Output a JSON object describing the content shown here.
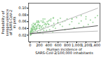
{
  "chart_data": {
    "type": "scatter",
    "xlabel": "Human incidence of\nSARS-CoV-2/100,000 inhabitants",
    "ylabel": "Probability of\nseroprevalence\nof SARS-CoV-2\nin pets",
    "xlim": [
      -30,
      1500
    ],
    "ylim": [
      0.0,
      0.115
    ],
    "xticks": [
      0,
      200,
      400,
      600,
      800,
      {
        "value": 1000,
        "label": "1,000"
      },
      {
        "value": 1200,
        "label": "1,200"
      },
      {
        "value": 1400,
        "label": "1,400"
      }
    ],
    "yticks": [
      0.02,
      0.04,
      0.06,
      0.08,
      {
        "value": 0.1,
        "label": "0.10"
      }
    ],
    "series": [
      {
        "type": "scatter",
        "color": "#88cc88",
        "x": [
          5,
          8,
          12,
          18,
          22,
          28,
          33,
          38,
          42,
          48,
          52,
          58,
          65,
          72,
          82,
          92,
          102,
          112,
          122,
          132,
          142,
          152,
          162,
          172,
          182,
          195,
          205,
          215,
          228,
          242,
          255,
          268,
          278,
          292,
          305,
          318,
          335,
          352,
          368,
          385,
          402,
          422,
          445,
          465,
          488,
          510,
          545,
          595,
          645,
          695,
          748,
          795,
          848,
          895,
          945,
          998,
          1048,
          1098,
          1148,
          1198,
          1248,
          1295,
          1348,
          1398,
          1448,
          10,
          20,
          30,
          45,
          65,
          95,
          125,
          155,
          195,
          245,
          295,
          345,
          395,
          495,
          25,
          55,
          88,
          115,
          145,
          175,
          208,
          238,
          268,
          298,
          398,
          498,
          598,
          18,
          38,
          78,
          108,
          138,
          168,
          198,
          278,
          348,
          448,
          598,
          748,
          898,
          1098,
          5,
          15,
          25,
          42,
          60,
          80,
          110,
          145,
          180,
          220,
          270,
          330,
          420,
          520,
          650,
          8,
          22,
          40,
          70,
          100,
          150,
          200,
          280,
          380,
          500,
          700,
          900,
          1200
        ],
        "values": [
          0.025,
          0.03,
          0.022,
          0.028,
          0.035,
          0.032,
          0.038,
          0.025,
          0.04,
          0.045,
          0.028,
          0.033,
          0.038,
          0.048,
          0.03,
          0.042,
          0.036,
          0.052,
          0.046,
          0.038,
          0.058,
          0.04,
          0.03,
          0.052,
          0.062,
          0.04,
          0.048,
          0.028,
          0.035,
          0.044,
          0.038,
          0.058,
          0.025,
          0.042,
          0.052,
          0.068,
          0.046,
          0.034,
          0.06,
          0.044,
          0.052,
          0.036,
          0.062,
          0.048,
          0.028,
          0.055,
          0.04,
          0.065,
          0.052,
          0.046,
          0.036,
          0.068,
          0.052,
          0.06,
          0.042,
          0.072,
          0.055,
          0.062,
          0.046,
          0.068,
          0.052,
          0.065,
          0.058,
          0.072,
          0.078,
          0.02,
          0.024,
          0.03,
          0.036,
          0.044,
          0.052,
          0.038,
          0.048,
          0.058,
          0.044,
          0.034,
          0.052,
          0.062,
          0.044,
          0.022,
          0.028,
          0.038,
          0.034,
          0.046,
          0.052,
          0.04,
          0.062,
          0.048,
          0.058,
          0.052,
          0.07,
          0.058,
          0.026,
          0.034,
          0.044,
          0.052,
          0.038,
          0.058,
          0.046,
          0.062,
          0.052,
          0.068,
          0.056,
          0.062,
          0.068,
          0.078,
          0.028,
          0.032,
          0.04,
          0.05,
          0.035,
          0.045,
          0.055,
          0.042,
          0.06,
          0.048,
          0.038,
          0.055,
          0.065,
          0.048,
          0.07,
          0.022,
          0.03,
          0.038,
          0.055,
          0.042,
          0.062,
          0.048,
          0.068,
          0.055,
          0.072,
          0.06,
          0.068,
          0.075
        ]
      },
      {
        "type": "line",
        "color": "#bbbbbb",
        "x": [
          0,
          1450
        ],
        "values": [
          0.024,
          0.1
        ]
      },
      {
        "type": "line",
        "color": "#bbbbbb",
        "x": [
          0,
          1450
        ],
        "values": [
          0.024,
          0.032
        ]
      },
      {
        "type": "line",
        "color": "#555555",
        "x": [
          0,
          1450
        ],
        "values": [
          0.024,
          0.048
        ]
      }
    ]
  }
}
